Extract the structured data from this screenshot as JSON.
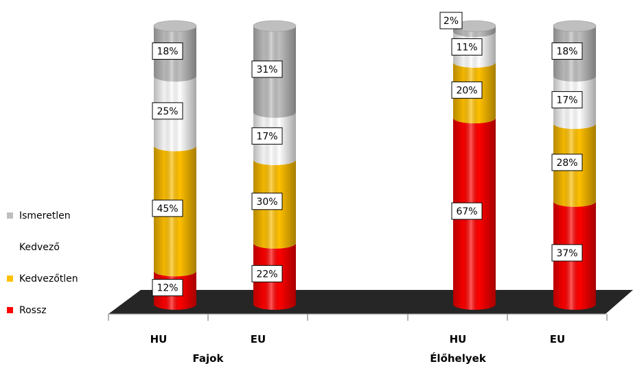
{
  "chart_data": {
    "type": "bar",
    "stacked": true,
    "style": "3d-cylinder",
    "categories": [
      "HU",
      "EU",
      "HU",
      "EU"
    ],
    "groups": [
      {
        "label": "Fajok",
        "categories": [
          "HU",
          "EU"
        ]
      },
      {
        "label": "Élőhelyek",
        "categories": [
          "HU",
          "EU"
        ]
      }
    ],
    "series": [
      {
        "name": "Rossz",
        "color": "#ff0000",
        "values": [
          12,
          22,
          67,
          37
        ]
      },
      {
        "name": "Kedvezőtlen",
        "color": "#ffc000",
        "values": [
          45,
          30,
          20,
          28
        ]
      },
      {
        "name": "Kedvező",
        "color": "#ffffff",
        "values": [
          25,
          17,
          11,
          17
        ]
      },
      {
        "name": "Ismeretlen",
        "color": "#bfbfbf",
        "values": [
          18,
          31,
          2,
          18
        ]
      }
    ],
    "data_labels": [
      [
        "12%",
        "22%",
        "67%",
        "37%"
      ],
      [
        "45%",
        "30%",
        "20%",
        "28%"
      ],
      [
        "25%",
        "17%",
        "11%",
        "17%"
      ],
      [
        "18%",
        "31%",
        "2%",
        "18%"
      ]
    ],
    "ylim": [
      0,
      100
    ],
    "legend": {
      "placement": "left",
      "order": [
        "Ismeretlen",
        "Kedvező",
        "Kedvezőtlen",
        "Rossz"
      ]
    },
    "floor_color": "#262626",
    "grid": false
  }
}
